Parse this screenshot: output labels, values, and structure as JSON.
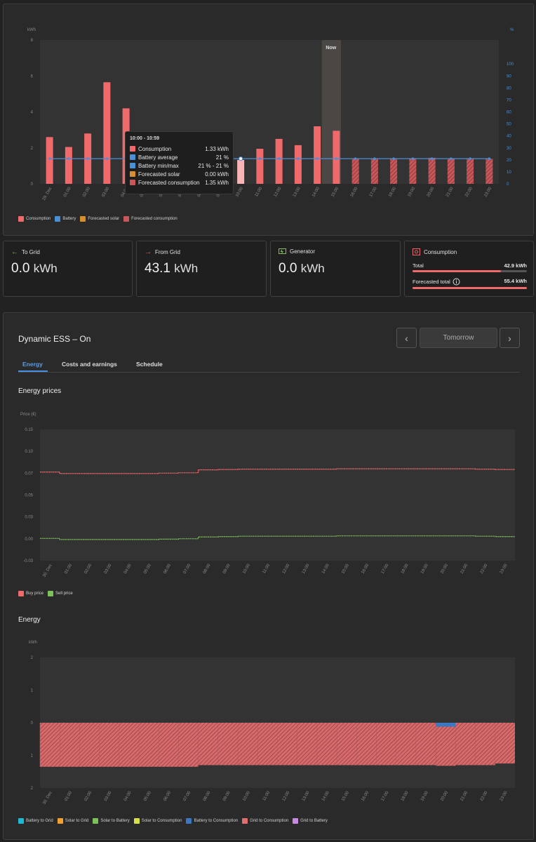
{
  "top_chart": {
    "left_unit": "kWh",
    "right_unit": "%",
    "now_label": "Now",
    "y_left_ticks": [
      "8",
      "6",
      "4",
      "2",
      "0"
    ],
    "y_right_ticks": [
      "100",
      "90",
      "80",
      "70",
      "60",
      "50",
      "40",
      "30",
      "20",
      "10",
      "0"
    ],
    "colors": {
      "consumption": "#f0696b",
      "battery": "#4a90d9",
      "forecast_solar": "#d98d2e",
      "forecast_consumption": "#c9575a"
    }
  },
  "chart_data": [
    {
      "type": "bar",
      "title": "",
      "xlabel": "",
      "ylabel": "kWh",
      "y2label": "%",
      "ylim": [
        0,
        8
      ],
      "y2lim": [
        0,
        120
      ],
      "categories": [
        "29. Dec",
        "01:00",
        "02:00",
        "03:00",
        "04:00",
        "05:00",
        "06:00",
        "07:00",
        "08:00",
        "09:00",
        "10:00",
        "11:00",
        "12:00",
        "13:00",
        "14:00",
        "15:00",
        "16:00",
        "17:00",
        "18:00",
        "19:00",
        "20:00",
        "21:00",
        "22:00",
        "23:00"
      ],
      "series": [
        {
          "name": "Consumption",
          "values": [
            2.6,
            2.05,
            2.8,
            5.65,
            4.2,
            1.5,
            1.5,
            1.4,
            1.4,
            1.4,
            1.33,
            1.95,
            2.5,
            2.15,
            3.2,
            2.95,
            null,
            null,
            null,
            null,
            null,
            null,
            null,
            null
          ]
        },
        {
          "name": "Forecasted consumption",
          "values": [
            null,
            null,
            null,
            null,
            null,
            null,
            null,
            null,
            null,
            null,
            null,
            null,
            null,
            null,
            null,
            null,
            1.4,
            1.4,
            1.4,
            1.4,
            1.45,
            1.4,
            1.4,
            1.4
          ]
        },
        {
          "name": "Battery",
          "values": [
            21,
            21,
            21,
            21,
            21,
            21,
            21,
            21,
            21,
            21,
            21,
            21,
            21,
            21,
            21,
            21,
            21,
            21,
            21,
            21,
            21,
            21,
            21,
            21
          ]
        },
        {
          "name": "Forecasted solar",
          "values": [
            0,
            0,
            0,
            0,
            0,
            0,
            0,
            0,
            0,
            0,
            0,
            0,
            0,
            0,
            0,
            0,
            0,
            0,
            0,
            0,
            0,
            0,
            0,
            0
          ]
        }
      ],
      "now_index": 15,
      "highlight_index": 10,
      "legend": "bottom-left"
    },
    {
      "type": "line",
      "title": "Energy prices",
      "ylabel": "Price (€)",
      "ylim": [
        -0.03,
        0.15
      ],
      "categories": [
        "30. Dec",
        "01:00",
        "02:00",
        "03:00",
        "04:00",
        "05:00",
        "06:00",
        "07:00",
        "08:00",
        "09:00",
        "10:00",
        "11:00",
        "12:00",
        "13:00",
        "14:00",
        "15:00",
        "16:00",
        "17:00",
        "18:00",
        "19:00",
        "20:00",
        "21:00",
        "22:00",
        "23:00"
      ],
      "series": [
        {
          "name": "Buy price",
          "values": [
            0.0915,
            0.0895,
            0.0895,
            0.0895,
            0.0895,
            0.0895,
            0.09,
            0.0905,
            0.0945,
            0.095,
            0.0955,
            0.0955,
            0.0955,
            0.0955,
            0.0955,
            0.096,
            0.096,
            0.096,
            0.096,
            0.096,
            0.096,
            0.096,
            0.0955,
            0.095
          ]
        },
        {
          "name": "Sell price",
          "values": [
            0.0005,
            -0.001,
            -0.001,
            -0.001,
            -0.001,
            -0.001,
            -0.0005,
            0.0,
            0.0025,
            0.003,
            0.0035,
            0.0035,
            0.0035,
            0.0035,
            0.0035,
            0.004,
            0.004,
            0.004,
            0.004,
            0.004,
            0.004,
            0.004,
            0.0035,
            0.003
          ]
        }
      ],
      "legend": "bottom-left"
    },
    {
      "type": "bar",
      "title": "Energy",
      "ylabel": "kWh",
      "ylim": [
        -2,
        2
      ],
      "categories": [
        "30. Dec",
        "01:00",
        "02:00",
        "03:00",
        "04:00",
        "05:00",
        "06:00",
        "07:00",
        "08:00",
        "09:00",
        "10:00",
        "11:00",
        "12:00",
        "13:00",
        "14:00",
        "15:00",
        "16:00",
        "17:00",
        "18:00",
        "19:00",
        "20:00",
        "21:00",
        "22:00",
        "23:00"
      ],
      "series": [
        {
          "name": "Battery to Grid",
          "values": [
            0,
            0,
            0,
            0,
            0,
            0,
            0,
            0,
            0,
            0,
            0,
            0,
            0,
            0,
            0,
            0,
            0,
            0,
            0,
            0,
            0,
            0,
            0,
            0
          ]
        },
        {
          "name": "Solar to Grid",
          "values": [
            0,
            0,
            0,
            0,
            0,
            0,
            0,
            0,
            0,
            0,
            0,
            0,
            0,
            0,
            0,
            0,
            0,
            0,
            0,
            0,
            0,
            0,
            0,
            0
          ]
        },
        {
          "name": "Solar to Battery",
          "values": [
            0,
            0,
            0,
            0,
            0,
            0,
            0,
            0,
            0,
            0,
            0,
            0,
            0,
            0,
            0,
            0,
            0,
            0,
            0,
            0,
            0,
            0,
            0,
            0
          ]
        },
        {
          "name": "Solar to Consumption",
          "values": [
            0,
            0,
            0,
            0,
            0,
            0,
            0,
            0,
            0,
            0,
            0,
            0,
            0,
            0,
            0,
            0,
            0,
            0,
            0,
            0,
            0,
            0,
            0,
            0
          ]
        },
        {
          "name": "Battery to Consumption",
          "values": [
            0,
            0,
            0,
            0,
            0,
            0,
            0,
            0,
            0,
            0,
            0,
            0,
            0,
            0,
            0,
            0,
            0,
            0,
            0,
            0,
            -0.12,
            0,
            0,
            0
          ]
        },
        {
          "name": "Grid to Consumption",
          "values": [
            -1.35,
            -1.35,
            -1.35,
            -1.35,
            -1.35,
            -1.35,
            -1.35,
            -1.35,
            -1.3,
            -1.3,
            -1.3,
            -1.3,
            -1.3,
            -1.3,
            -1.3,
            -1.3,
            -1.3,
            -1.3,
            -1.3,
            -1.3,
            -1.2,
            -1.3,
            -1.3,
            -1.25
          ]
        },
        {
          "name": "Grid to Battery",
          "values": [
            0,
            0,
            0,
            0,
            0,
            0,
            0,
            0,
            0,
            0,
            0,
            0,
            0,
            0,
            0,
            0,
            0,
            0,
            0,
            0,
            0,
            0,
            0,
            0
          ]
        }
      ],
      "legend": "bottom-left"
    }
  ],
  "tooltip": {
    "title": "10:00 - 10:59",
    "rows": [
      {
        "label": "Consumption",
        "value": "1.33 kWh",
        "color": "#f0696b"
      },
      {
        "label": "Battery average",
        "value": "21 %",
        "color": "#4a90d9"
      },
      {
        "label": "Battery min/max",
        "value": "21 % - 21 %",
        "color": "#4a90d9"
      },
      {
        "label": "Forecasted solar",
        "value": "0.00 kWh",
        "color": "#d98d2e"
      },
      {
        "label": "Forecasted consumption",
        "value": "1.35 kWh",
        "color": "#c9575a"
      }
    ]
  },
  "top_legend": [
    "Consumption",
    "Battery",
    "Forecasted solar",
    "Forecasted consumption"
  ],
  "cards": {
    "to_grid": {
      "label": "To Grid",
      "value": "0.0",
      "unit": "kWh"
    },
    "from_grid": {
      "label": "From Grid",
      "value": "43.1",
      "unit": "kWh"
    },
    "generator": {
      "label": "Generator",
      "value": "0.0",
      "unit": "kWh"
    },
    "consumption": {
      "label": "Consumption",
      "total_label": "Total",
      "total_value": "42.9 kWh",
      "total_fraction": 0.77,
      "forecast_label": "Forecasted total",
      "forecast_value": "55.4 kWh",
      "forecast_fraction": 1.0
    }
  },
  "ess": {
    "title": "Dynamic ESS – On",
    "day_label": "Tomorrow",
    "prev_label": "‹",
    "next_label": "›",
    "tabs": [
      "Energy",
      "Costs and earnings",
      "Schedule"
    ],
    "prices_title": "Energy prices",
    "prices_ylabel": "Price (€)",
    "prices_yticks": [
      "0.15",
      "0.10",
      "0.07",
      "0.05",
      "0.03",
      "0.00",
      "-0.03"
    ],
    "prices_legend": [
      "Buy price",
      "Sell price"
    ],
    "energy_title": "Energy",
    "energy_ylabel": "kWh",
    "energy_yticks": [
      "2",
      "1",
      "0",
      "1",
      "2"
    ],
    "energy_legend": [
      "Battery to Grid",
      "Solar to Grid",
      "Solar to Battery",
      "Solar to Consumption",
      "Battery to Consumption",
      "Grid to Consumption",
      "Grid to Battery"
    ],
    "legend_colors": {
      "buy": "#f0696b",
      "sell": "#7cc15a",
      "battery_to_grid": "#1fb8d4",
      "solar_to_grid": "#f0a030",
      "solar_to_battery": "#7cc15a",
      "solar_to_consumption": "#d6e04a",
      "battery_to_consumption": "#3a78c2",
      "grid_to_consumption": "#e07070",
      "grid_to_battery": "#c98ae0"
    }
  }
}
